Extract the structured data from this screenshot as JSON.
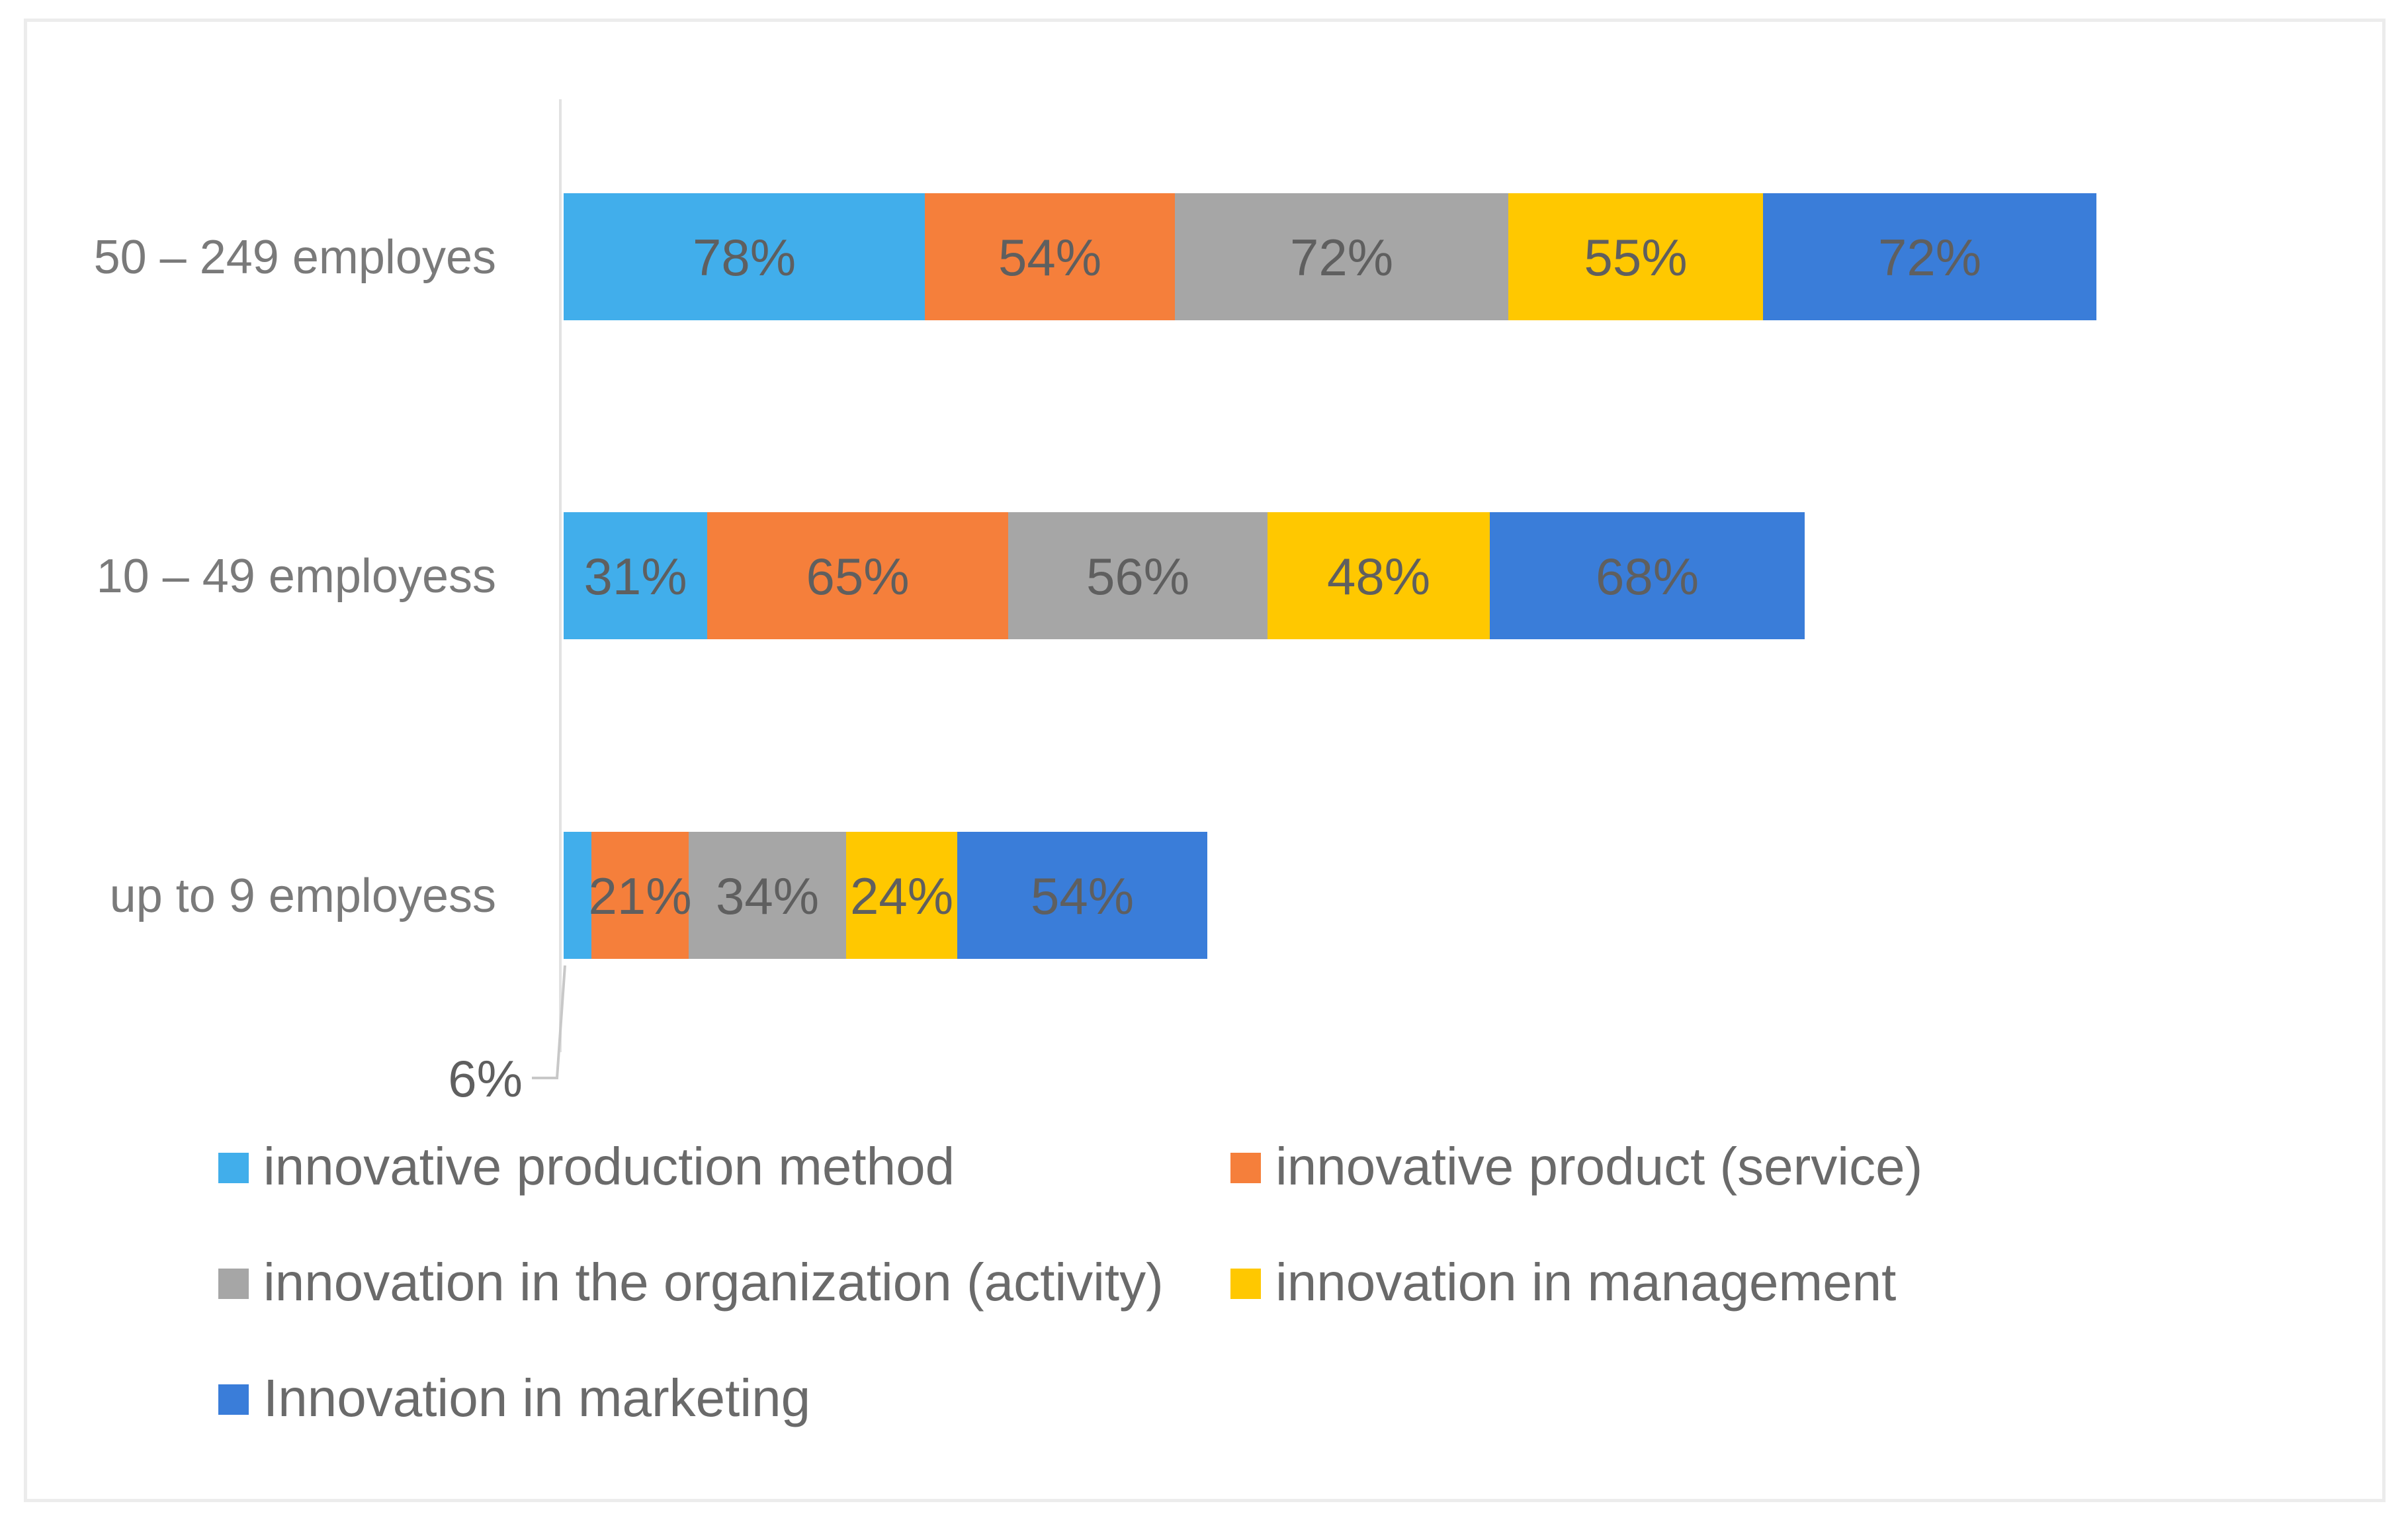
{
  "chart_data": {
    "type": "bar",
    "orientation": "horizontal",
    "stacked": true,
    "categories": [
      "50 – 249 employes",
      "10 – 49 employess",
      "up to 9 employess"
    ],
    "series": [
      {
        "name": "innovative production method",
        "color": "#41AEEB",
        "values": [
          78,
          31,
          6
        ],
        "labels": [
          "78%",
          "31%",
          "6%"
        ]
      },
      {
        "name": "innovative product (service)",
        "color": "#F57F3B",
        "values": [
          54,
          65,
          21
        ],
        "labels": [
          "54%",
          "65%",
          "21%"
        ]
      },
      {
        "name": "innovation in the organization (activity)",
        "color": "#A6A6A6",
        "values": [
          72,
          56,
          34
        ],
        "labels": [
          "72%",
          "56%",
          "34%"
        ]
      },
      {
        "name": "innovation in management",
        "color": "#FFC800",
        "values": [
          55,
          48,
          24
        ],
        "labels": [
          "55%",
          "48%",
          "24%"
        ]
      },
      {
        "name": "Innovation in marketing",
        "color": "#3A7DD9",
        "values": [
          72,
          68,
          54
        ],
        "labels": [
          "72%",
          "68%",
          "54%"
        ]
      }
    ],
    "xlim": [
      0,
      360
    ],
    "grid": false,
    "legend_position": "bottom",
    "callout_label": "6%"
  }
}
